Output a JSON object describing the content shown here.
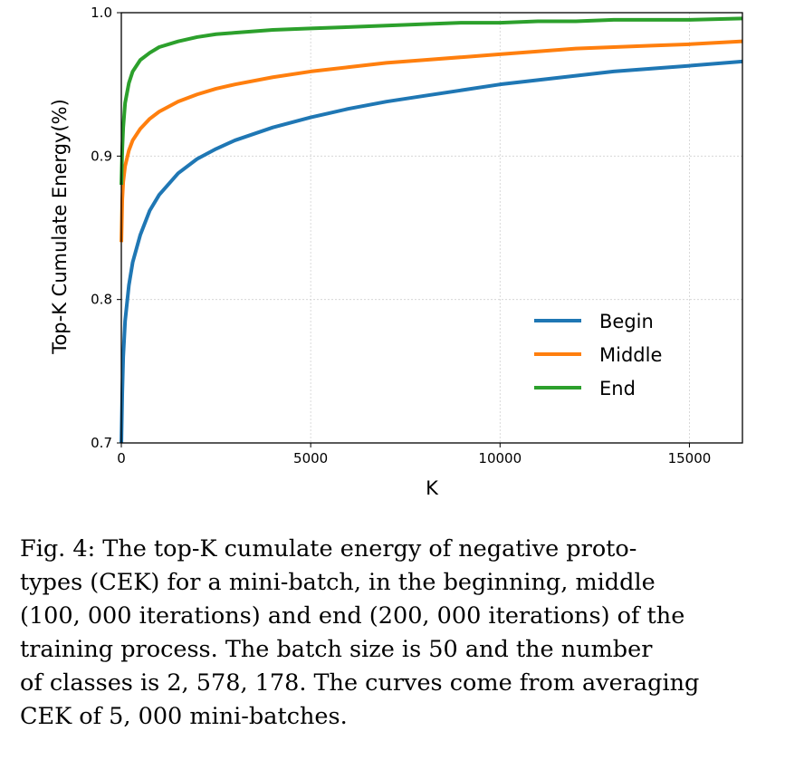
{
  "chart_data": {
    "type": "line",
    "title": "",
    "xlabel": "K",
    "ylabel": "Top-K Cumulate Energy(%)",
    "xlim": [
      0,
      16400
    ],
    "ylim": [
      0.7,
      1.0
    ],
    "xticks": [
      0,
      5000,
      10000,
      15000
    ],
    "xtick_labels": [
      "0",
      "5000",
      "10000",
      "15000"
    ],
    "yticks": [
      0.7,
      0.8,
      0.9,
      1.0
    ],
    "ytick_labels": [
      "0.7",
      "0.8",
      "0.9",
      "1.0"
    ],
    "grid": true,
    "legend_position": "lower-right",
    "x": [
      1,
      25,
      50,
      100,
      200,
      300,
      500,
      750,
      1000,
      1500,
      2000,
      2500,
      3000,
      4000,
      5000,
      6000,
      7000,
      8000,
      9000,
      10000,
      11000,
      12000,
      13000,
      14000,
      15000,
      16400
    ],
    "series": [
      {
        "name": "Begin",
        "color": "#1f77b4",
        "values": [
          0.7,
          0.735,
          0.76,
          0.785,
          0.81,
          0.826,
          0.845,
          0.862,
          0.873,
          0.888,
          0.898,
          0.905,
          0.911,
          0.92,
          0.927,
          0.933,
          0.938,
          0.942,
          0.946,
          0.95,
          0.953,
          0.956,
          0.959,
          0.961,
          0.963,
          0.966
        ]
      },
      {
        "name": "Middle",
        "color": "#ff7f0e",
        "values": [
          0.84,
          0.87,
          0.882,
          0.893,
          0.904,
          0.911,
          0.919,
          0.926,
          0.931,
          0.938,
          0.943,
          0.947,
          0.95,
          0.955,
          0.959,
          0.962,
          0.965,
          0.967,
          0.969,
          0.971,
          0.973,
          0.975,
          0.976,
          0.977,
          0.978,
          0.98
        ]
      },
      {
        "name": "End",
        "color": "#2ca02c",
        "values": [
          0.88,
          0.905,
          0.92,
          0.937,
          0.951,
          0.959,
          0.967,
          0.972,
          0.976,
          0.98,
          0.983,
          0.985,
          0.986,
          0.988,
          0.989,
          0.99,
          0.991,
          0.992,
          0.993,
          0.993,
          0.994,
          0.994,
          0.995,
          0.995,
          0.995,
          0.996
        ]
      }
    ]
  },
  "caption": {
    "text": "Fig. 4: The top-K cumulate energy of negative proto-\ntypes (CEK) for a mini-batch, in the beginning, middle\n(100, 000 iterations) and end (200, 000 iterations) of the\ntraining process. The batch size is 50 and the number\nof classes is 2, 578, 178. The curves come from averaging\nCEK of 5, 000 mini-batches."
  }
}
